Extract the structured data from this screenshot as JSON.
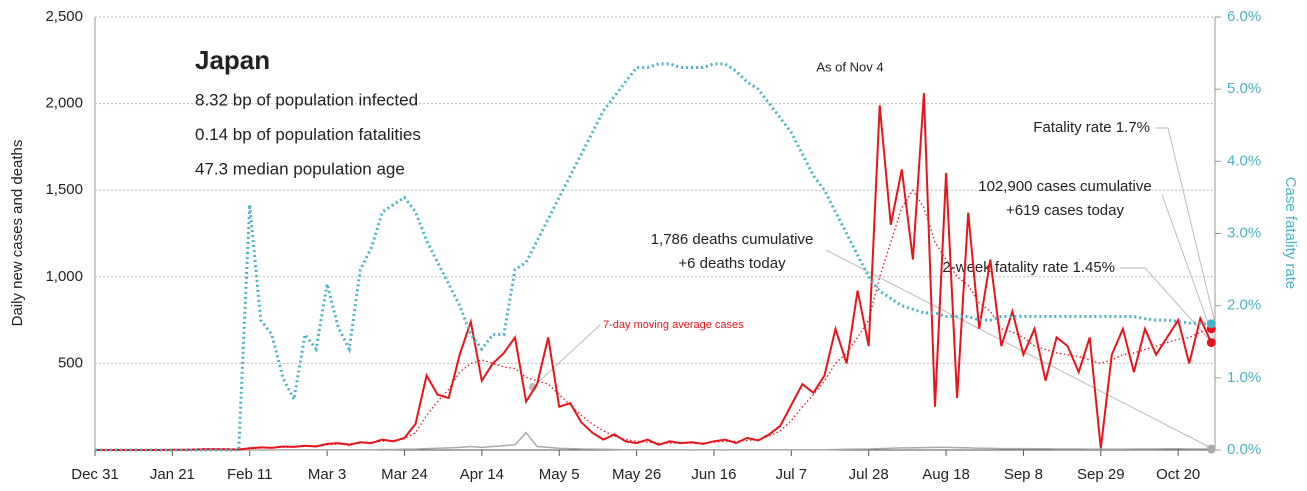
{
  "chart_data": {
    "type": "line",
    "title": "Japan",
    "subtitle_lines": [
      "8.32 bp of population infected",
      "0.14 bp of population fatalities",
      "47.3 median population age"
    ],
    "date_note": "As of Nov 4",
    "annotations": [
      "Fatality rate 1.7%",
      "102,900 cases cumulative",
      "+619 cases today",
      "1,786 deaths cumulative",
      "+6 deaths today",
      "2-week fatality rate 1.45%"
    ],
    "ylabel": "Daily new cases and deaths",
    "y2label": "Case fatality rate",
    "xlim": [
      0,
      304
    ],
    "xticks": [
      {
        "value": 0,
        "label": "Dec 31"
      },
      {
        "value": 21,
        "label": "Jan 21"
      },
      {
        "value": 42,
        "label": "Feb 11"
      },
      {
        "value": 63,
        "label": "Mar 3"
      },
      {
        "value": 84,
        "label": "Mar 24"
      },
      {
        "value": 105,
        "label": "Apr 14"
      },
      {
        "value": 126,
        "label": "May 5"
      },
      {
        "value": 147,
        "label": "May 26"
      },
      {
        "value": 168,
        "label": "Jun 16"
      },
      {
        "value": 189,
        "label": "Jul 7"
      },
      {
        "value": 210,
        "label": "Jul 28"
      },
      {
        "value": 231,
        "label": "Aug 18"
      },
      {
        "value": 252,
        "label": "Sep 8"
      },
      {
        "value": 273,
        "label": "Sep 29"
      },
      {
        "value": 294,
        "label": "Oct 20"
      }
    ],
    "ylim": [
      0,
      2500
    ],
    "yticks": [
      500,
      {
        "value": 1000,
        "label": "1,000"
      },
      {
        "value": 1500,
        "label": "1,500"
      },
      {
        "value": 2000,
        "label": "2,000"
      },
      {
        "value": 2500,
        "label": "2,500"
      }
    ],
    "y2lim": [
      0,
      6
    ],
    "y2ticks": [
      {
        "value": 0,
        "label": "0.0%"
      },
      {
        "value": 1,
        "label": "1.0%"
      },
      {
        "value": 2,
        "label": "2.0%"
      },
      {
        "value": 3,
        "label": "3.0%"
      },
      {
        "value": 4,
        "label": "4.0%"
      },
      {
        "value": 5,
        "label": "5.0%"
      },
      {
        "value": 6,
        "label": "6.0%"
      }
    ],
    "grid": true,
    "x": [
      0,
      3,
      6,
      9,
      12,
      15,
      18,
      21,
      24,
      27,
      30,
      33,
      36,
      39,
      42,
      45,
      48,
      51,
      54,
      57,
      60,
      63,
      66,
      69,
      72,
      75,
      78,
      81,
      84,
      87,
      90,
      93,
      96,
      99,
      102,
      105,
      108,
      111,
      114,
      117,
      120,
      123,
      126,
      129,
      132,
      135,
      138,
      141,
      144,
      147,
      150,
      153,
      156,
      159,
      162,
      165,
      168,
      171,
      174,
      177,
      180,
      183,
      186,
      189,
      192,
      195,
      198,
      201,
      204,
      207,
      210,
      213,
      216,
      219,
      222,
      225,
      228,
      231,
      234,
      237,
      240,
      243,
      246,
      249,
      252,
      255,
      258,
      261,
      264,
      267,
      270,
      273,
      276,
      279,
      282,
      285,
      288,
      291,
      294,
      297,
      300,
      303
    ],
    "series": [
      {
        "color": "#aaaaaa",
        "style": "solid",
        "values": [
          0,
          0,
          0,
          0,
          0,
          0,
          0,
          0,
          0,
          0,
          0,
          0,
          0,
          0,
          0,
          0,
          0,
          1,
          1,
          1,
          1,
          1,
          2,
          2,
          2,
          2,
          3,
          3,
          5,
          5,
          8,
          10,
          12,
          15,
          20,
          15,
          20,
          25,
          30,
          100,
          20,
          15,
          10,
          8,
          6,
          5,
          4,
          3,
          2,
          2,
          1,
          1,
          1,
          1,
          0,
          1,
          1,
          0,
          1,
          1,
          1,
          1,
          1,
          1,
          1,
          2,
          2,
          3,
          4,
          5,
          6,
          8,
          10,
          12,
          12,
          14,
          15,
          15,
          14,
          12,
          10,
          10,
          8,
          8,
          8,
          7,
          7,
          6,
          6,
          6,
          5,
          5,
          5,
          5,
          6,
          6,
          6,
          7,
          7,
          6,
          6,
          6
        ]
      },
      {
        "color": "#e8141c",
        "style": "solid",
        "values": [
          0,
          0,
          0,
          0,
          0,
          0,
          0,
          2,
          2,
          3,
          5,
          5,
          4,
          3,
          10,
          15,
          12,
          20,
          18,
          25,
          20,
          35,
          40,
          30,
          45,
          40,
          60,
          50,
          70,
          150,
          430,
          320,
          300,
          550,
          740,
          400,
          500,
          560,
          650,
          280,
          380,
          650,
          250,
          270,
          160,
          100,
          60,
          90,
          50,
          40,
          60,
          30,
          50,
          40,
          45,
          35,
          50,
          60,
          40,
          70,
          55,
          90,
          140,
          260,
          380,
          330,
          430,
          700,
          500,
          920,
          600,
          1990,
          1300,
          1620,
          1100,
          2060,
          250,
          1600,
          300,
          1370,
          700,
          1100,
          600,
          800,
          550,
          700,
          400,
          650,
          600,
          450,
          650,
          10,
          550,
          700,
          450,
          700,
          550,
          650,
          750,
          500,
          760,
          620
        ]
      },
      {
        "name": "7-day moving average cases",
        "color": "#e8141c",
        "style": "dotted",
        "values": [
          0,
          0,
          0,
          0,
          0,
          0,
          0,
          1,
          2,
          3,
          4,
          4,
          4,
          3,
          8,
          12,
          14,
          16,
          18,
          22,
          24,
          30,
          34,
          36,
          40,
          44,
          50,
          55,
          65,
          100,
          200,
          280,
          350,
          450,
          500,
          520,
          500,
          480,
          470,
          420,
          400,
          380,
          320,
          260,
          200,
          150,
          110,
          80,
          60,
          50,
          45,
          40,
          40,
          40,
          40,
          40,
          45,
          50,
          50,
          55,
          60,
          80,
          110,
          170,
          250,
          320,
          400,
          500,
          560,
          650,
          750,
          1000,
          1200,
          1400,
          1500,
          1400,
          1200,
          1100,
          1000,
          950,
          850,
          800,
          700,
          680,
          650,
          600,
          580,
          560,
          550,
          540,
          520,
          500,
          520,
          550,
          560,
          580,
          600,
          620,
          640,
          650,
          680,
          700
        ]
      },
      {
        "color": "#4bb3c8",
        "style": "dotted-thick",
        "axis": "y2",
        "values": [
          0,
          0,
          0,
          0,
          0,
          0,
          0,
          0,
          0,
          0,
          0,
          0,
          0,
          0,
          3.4,
          1.8,
          1.6,
          1.0,
          0.7,
          1.6,
          1.4,
          2.3,
          1.7,
          1.4,
          2.5,
          2.8,
          3.3,
          3.4,
          3.5,
          3.3,
          2.9,
          2.6,
          2.3,
          2.0,
          1.6,
          1.4,
          1.6,
          1.6,
          2.5,
          2.6,
          2.9,
          3.2,
          3.5,
          3.8,
          4.1,
          4.4,
          4.7,
          4.9,
          5.1,
          5.3,
          5.3,
          5.35,
          5.35,
          5.3,
          5.3,
          5.3,
          5.35,
          5.35,
          5.25,
          5.1,
          5.0,
          4.8,
          4.6,
          4.4,
          4.1,
          3.8,
          3.6,
          3.3,
          3.0,
          2.7,
          2.4,
          2.2,
          2.1,
          2.0,
          1.95,
          1.9,
          1.9,
          1.85,
          1.85,
          1.85,
          1.8,
          1.8,
          1.85,
          1.85,
          1.85,
          1.85,
          1.85,
          1.85,
          1.85,
          1.85,
          1.85,
          1.85,
          1.85,
          1.85,
          1.85,
          1.82,
          1.8,
          1.8,
          1.78,
          1.76,
          1.75,
          1.75
        ]
      }
    ]
  }
}
